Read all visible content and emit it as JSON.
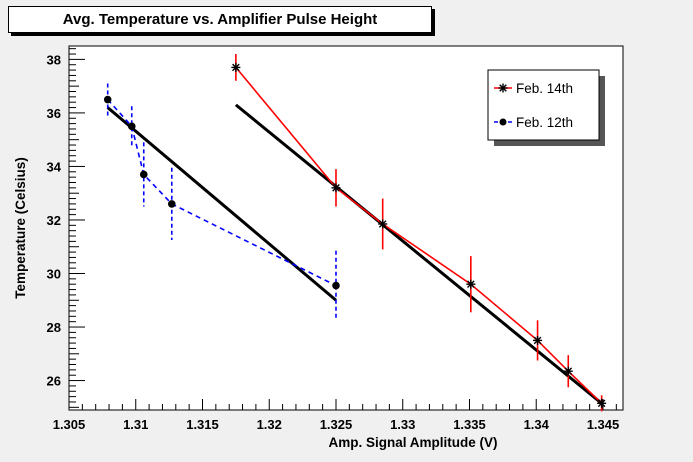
{
  "chart_data": {
    "type": "scatter",
    "title": "Avg. Temperature vs. Amplifier Pulse Height",
    "xlabel": "Amp. Signal Amplitude (V)",
    "ylabel": "Temperature (Celsius)",
    "xlim": [
      1.305,
      1.3465
    ],
    "ylim": [
      24.9,
      38.5
    ],
    "xticks": [
      "1.305",
      "1.31",
      "1.315",
      "1.32",
      "1.325",
      "1.33",
      "1.335",
      "1.34",
      "1.345"
    ],
    "yticks": [
      "26",
      "28",
      "30",
      "32",
      "34",
      "36",
      "38"
    ],
    "legend_position": "top-right",
    "series": [
      {
        "name": "Feb. 14th",
        "color": "#ff0000",
        "marker": "star",
        "line": "solid",
        "x": [
          1.3175,
          1.325,
          1.3285,
          1.3351,
          1.3401,
          1.3424,
          1.3449
        ],
        "y": [
          37.7,
          33.2,
          31.85,
          29.6,
          27.5,
          26.35,
          25.15
        ],
        "yerr": [
          0.5,
          0.7,
          0.95,
          1.05,
          0.75,
          0.6,
          0.3
        ]
      },
      {
        "name": "Feb. 12th",
        "color": "#0000ff",
        "marker": "circle",
        "line": "dashed",
        "x": [
          1.3079,
          1.3097,
          1.3106,
          1.3127,
          1.325
        ],
        "y": [
          36.5,
          35.5,
          33.7,
          32.6,
          29.55
        ],
        "yerr": [
          0.6,
          0.75,
          1.2,
          1.35,
          1.3
        ]
      }
    ],
    "fits": [
      {
        "color": "#000000",
        "x": [
          1.3175,
          1.3449
        ],
        "y": [
          36.3,
          25.15
        ]
      },
      {
        "color": "#000000",
        "x": [
          1.3079,
          1.325
        ],
        "y": [
          36.2,
          29.0
        ]
      }
    ]
  }
}
